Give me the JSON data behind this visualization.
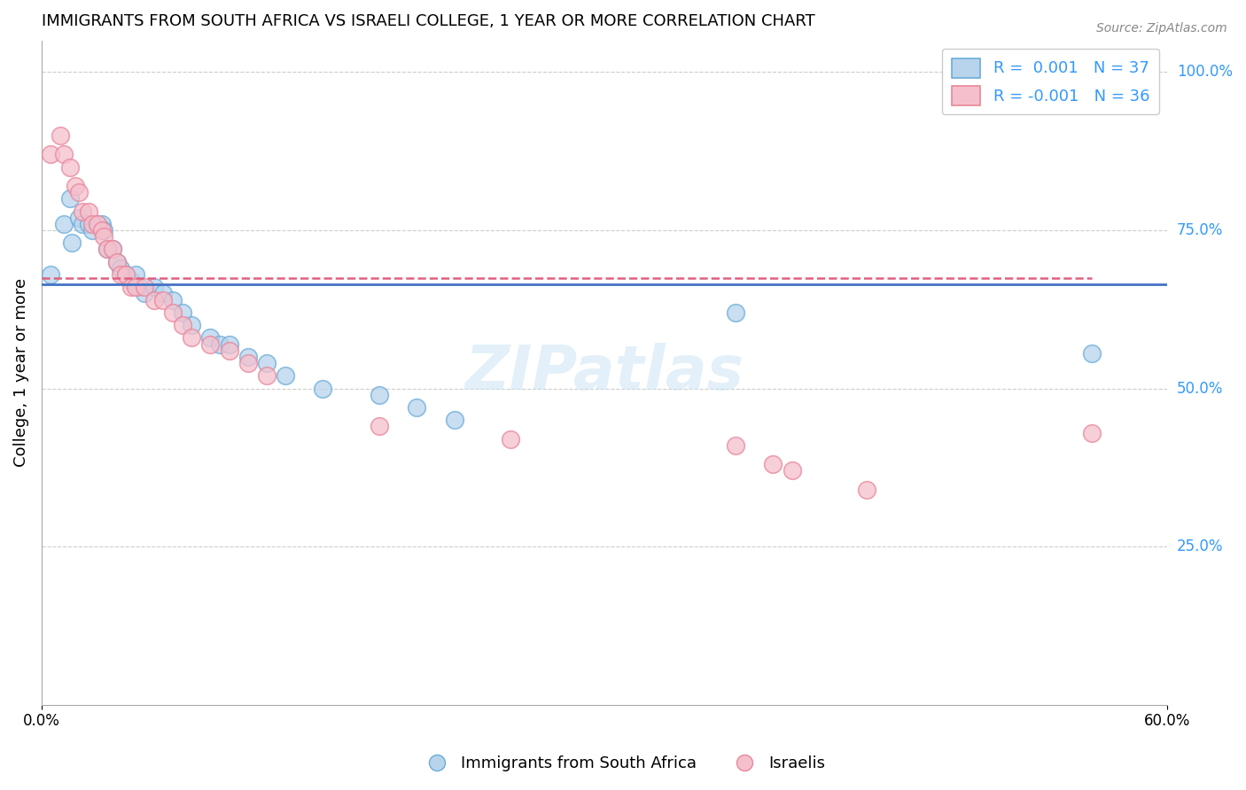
{
  "title": "IMMIGRANTS FROM SOUTH AFRICA VS ISRAELI COLLEGE, 1 YEAR OR MORE CORRELATION CHART",
  "source": "Source: ZipAtlas.com",
  "xlabel": "",
  "ylabel": "College, 1 year or more",
  "xlim": [
    0.0,
    0.6
  ],
  "ylim": [
    0.0,
    1.05
  ],
  "xtick_labels": [
    "0.0%",
    "60.0%"
  ],
  "xtick_positions": [
    0.0,
    0.6
  ],
  "ytick_labels": [
    "25.0%",
    "50.0%",
    "75.0%",
    "100.0%"
  ],
  "ytick_positions": [
    0.25,
    0.5,
    0.75,
    1.0
  ],
  "legend1_label": "R =  0.001   N = 37",
  "legend2_label": "R = -0.001   N = 36",
  "legend1_facecolor": "#b8d4ed",
  "legend2_facecolor": "#f5c0cc",
  "scatter1_edgecolor": "#6aacd8",
  "scatter2_edgecolor": "#e8869a",
  "trendline1_color": "#4472c4",
  "trendline2_color": "#e06080",
  "trendline1_y": 0.665,
  "trendline2_y": 0.675,
  "trendline1_xstart": 0.0,
  "trendline1_xend": 0.6,
  "trendline2_xstart": 0.0,
  "trendline2_xend": 0.56,
  "watermark": "ZIPatlas",
  "blue_scatter_x": [
    0.005,
    0.012,
    0.015,
    0.016,
    0.02,
    0.022,
    0.025,
    0.027,
    0.03,
    0.032,
    0.033,
    0.035,
    0.038,
    0.04,
    0.042,
    0.045,
    0.048,
    0.05,
    0.052,
    0.055,
    0.06,
    0.065,
    0.07,
    0.075,
    0.08,
    0.09,
    0.095,
    0.1,
    0.11,
    0.12,
    0.13,
    0.15,
    0.18,
    0.2,
    0.22,
    0.37,
    0.56
  ],
  "blue_scatter_y": [
    0.68,
    0.76,
    0.8,
    0.73,
    0.77,
    0.76,
    0.76,
    0.75,
    0.76,
    0.76,
    0.75,
    0.72,
    0.72,
    0.7,
    0.69,
    0.68,
    0.67,
    0.68,
    0.66,
    0.65,
    0.66,
    0.65,
    0.64,
    0.62,
    0.6,
    0.58,
    0.57,
    0.57,
    0.55,
    0.54,
    0.52,
    0.5,
    0.49,
    0.47,
    0.45,
    0.62,
    0.555
  ],
  "pink_scatter_x": [
    0.005,
    0.01,
    0.012,
    0.015,
    0.018,
    0.02,
    0.022,
    0.025,
    0.027,
    0.03,
    0.032,
    0.033,
    0.035,
    0.038,
    0.04,
    0.042,
    0.045,
    0.048,
    0.05,
    0.055,
    0.06,
    0.065,
    0.07,
    0.075,
    0.08,
    0.09,
    0.1,
    0.11,
    0.12,
    0.18,
    0.25,
    0.37,
    0.39,
    0.4,
    0.44,
    0.56
  ],
  "pink_scatter_y": [
    0.87,
    0.9,
    0.87,
    0.85,
    0.82,
    0.81,
    0.78,
    0.78,
    0.76,
    0.76,
    0.75,
    0.74,
    0.72,
    0.72,
    0.7,
    0.68,
    0.68,
    0.66,
    0.66,
    0.66,
    0.64,
    0.64,
    0.62,
    0.6,
    0.58,
    0.57,
    0.56,
    0.54,
    0.52,
    0.44,
    0.42,
    0.41,
    0.38,
    0.37,
    0.34,
    0.43
  ]
}
